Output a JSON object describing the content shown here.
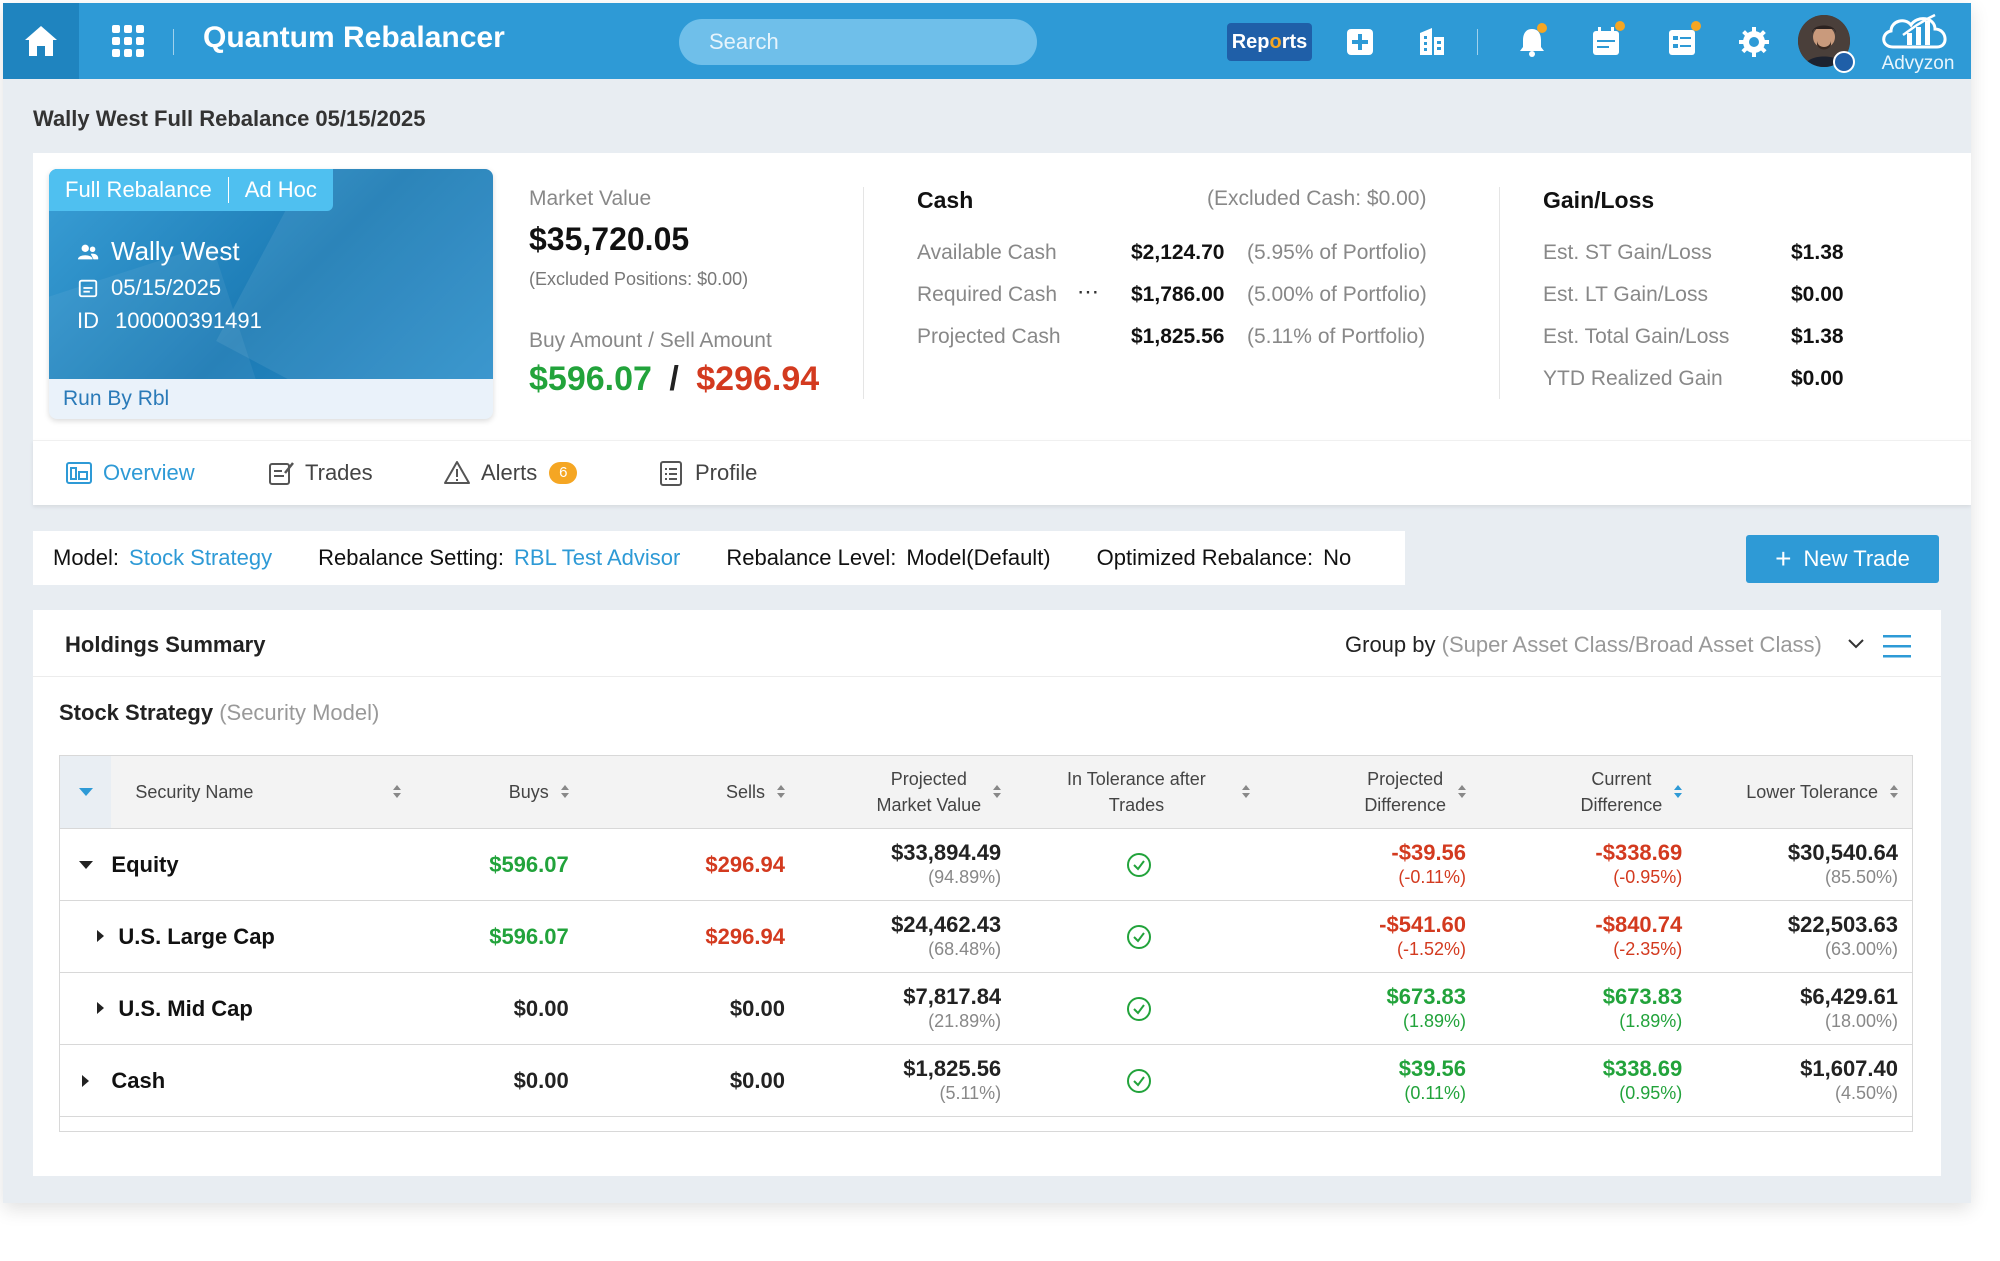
{
  "header": {
    "app_title": "Quantum Rebalancer",
    "search_placeholder": "Search",
    "reports_label_a": "Rep",
    "reports_label_o": "o",
    "reports_label_b": "rts",
    "brand": "Advyzon",
    "accent": "#2e9ad6",
    "icons": [
      "home-icon",
      "apps-grid-icon",
      "add-icon",
      "building-icon",
      "bell-icon",
      "calendar-icon",
      "tasks-icon",
      "gear-icon"
    ]
  },
  "page_title": "Wally West Full Rebalance 05/15/2025",
  "card": {
    "tab_full": "Full Rebalance",
    "tab_adhoc": "Ad Hoc",
    "name": "Wally West",
    "date": "05/15/2025",
    "id_label": "ID",
    "id_value": "100000391491",
    "run_by": "Run By Rbl"
  },
  "market": {
    "label": "Market Value",
    "value": "$35,720.05",
    "excluded": "(Excluded Positions: $0.00)",
    "buy_sell_label": "Buy Amount / Sell Amount",
    "buy": "$596.07",
    "slash": "/",
    "sell": "$296.94"
  },
  "cash": {
    "title": "Cash",
    "excluded": "(Excluded Cash:   $0.00)",
    "rows": [
      {
        "label": "Available Cash",
        "value": "$2,124.70",
        "pct": "(5.95% of Portfolio)"
      },
      {
        "label": "Required Cash",
        "value": "$1,786.00",
        "pct": "(5.00% of Portfolio)"
      },
      {
        "label": "Projected Cash",
        "value": "$1,825.56",
        "pct": "(5.11% of Portfolio)"
      }
    ],
    "more": "⋯"
  },
  "gainloss": {
    "title": "Gain/Loss",
    "rows": [
      {
        "label": "Est. ST Gain/Loss",
        "value": "$1.38"
      },
      {
        "label": "Est. LT Gain/Loss",
        "value": "$0.00"
      },
      {
        "label": "Est. Total Gain/Loss",
        "value": "$1.38"
      },
      {
        "label": "YTD Realized Gain",
        "value": "$0.00"
      }
    ]
  },
  "tabs": [
    {
      "label": "Overview"
    },
    {
      "label": "Trades"
    },
    {
      "label": "Alerts",
      "badge": "6"
    },
    {
      "label": "Profile"
    }
  ],
  "model_bar": {
    "model_key": "Model:",
    "model_val": "Stock Strategy",
    "setting_key": "Rebalance Setting:",
    "setting_val": "RBL Test Advisor",
    "level_key": "Rebalance Level:",
    "level_val": "Model(Default)",
    "opt_key": "Optimized Rebalance:",
    "opt_val": "No"
  },
  "new_trade": "New Trade",
  "holdings": {
    "title": "Holdings Summary",
    "groupby_key": "Group by",
    "groupby_val": "(Super Asset Class/Broad Asset Class)",
    "strategy": "Stock Strategy",
    "strategy_sub": "(Security Model)",
    "columns": {
      "name": "Security Name",
      "buys": "Buys",
      "sells": "Sells",
      "pmv1": "Projected",
      "pmv2": "Market Value",
      "tol1": "In Tolerance after",
      "tol2": "Trades",
      "pd1": "Projected",
      "pd2": "Difference",
      "cd1": "Current",
      "cd2": "Difference",
      "lower": "Lower Tolerance"
    },
    "rows": [
      {
        "name": "Equity",
        "buys": "$596.07",
        "sells": "$296.94",
        "pmv": "$33,894.49",
        "pmv_pct": "(94.89%)",
        "pd": "-$39.56",
        "pd_pct": "(-0.11%)",
        "cd": "-$338.69",
        "cd_pct": "(-0.95%)",
        "lt": "$30,540.64",
        "lt_pct": "(85.50%)"
      },
      {
        "name": "U.S. Large Cap",
        "buys": "$596.07",
        "sells": "$296.94",
        "pmv": "$24,462.43",
        "pmv_pct": "(68.48%)",
        "pd": "-$541.60",
        "pd_pct": "(-1.52%)",
        "cd": "-$840.74",
        "cd_pct": "(-2.35%)",
        "lt": "$22,503.63",
        "lt_pct": "(63.00%)"
      },
      {
        "name": "U.S. Mid Cap",
        "buys": "$0.00",
        "sells": "$0.00",
        "pmv": "$7,817.84",
        "pmv_pct": "(21.89%)",
        "pd": "$673.83",
        "pd_pct": "(1.89%)",
        "cd": "$673.83",
        "cd_pct": "(1.89%)",
        "lt": "$6,429.61",
        "lt_pct": "(18.00%)"
      },
      {
        "name": "Cash",
        "buys": "$0.00",
        "sells": "$0.00",
        "pmv": "$1,825.56",
        "pmv_pct": "(5.11%)",
        "pd": "$39.56",
        "pd_pct": "(0.11%)",
        "cd": "$338.69",
        "cd_pct": "(0.95%)",
        "lt": "$1,607.40",
        "lt_pct": "(4.50%)"
      }
    ]
  }
}
